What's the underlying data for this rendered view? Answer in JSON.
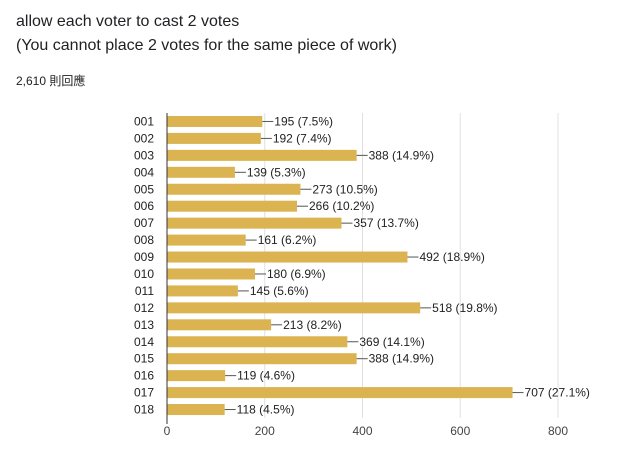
{
  "question": {
    "line1": "allow each voter to cast 2 votes",
    "line2": "(You cannot place 2 votes for the same piece of work)",
    "response_count": "2,610 則回應"
  },
  "chart_data": {
    "type": "bar",
    "orientation": "horizontal",
    "categories": [
      "001",
      "002",
      "003",
      "004",
      "005",
      "006",
      "007",
      "008",
      "009",
      "010",
      "011",
      "012",
      "013",
      "014",
      "015",
      "016",
      "017",
      "018"
    ],
    "values": [
      195,
      192,
      388,
      139,
      273,
      266,
      357,
      161,
      492,
      180,
      145,
      518,
      213,
      369,
      388,
      119,
      707,
      118
    ],
    "data_labels": [
      "195 (7.5%)",
      "192 (7.4%)",
      "388 (14.9%)",
      "139 (5.3%)",
      "273 (10.5%)",
      "266 (10.2%)",
      "357 (13.7%)",
      "161 (6.2%)",
      "492 (18.9%)",
      "180 (6.9%)",
      "145 (5.6%)",
      "518 (19.8%)",
      "213 (8.2%)",
      "369 (14.1%)",
      "388 (14.9%)",
      "119 (4.6%)",
      "707 (27.1%)",
      "118 (4.5%)"
    ],
    "xlim": [
      0,
      800
    ],
    "x_ticks": [
      0,
      200,
      400,
      600,
      800
    ],
    "bar_color": "#dcb351",
    "grid": true,
    "legend": "none"
  }
}
